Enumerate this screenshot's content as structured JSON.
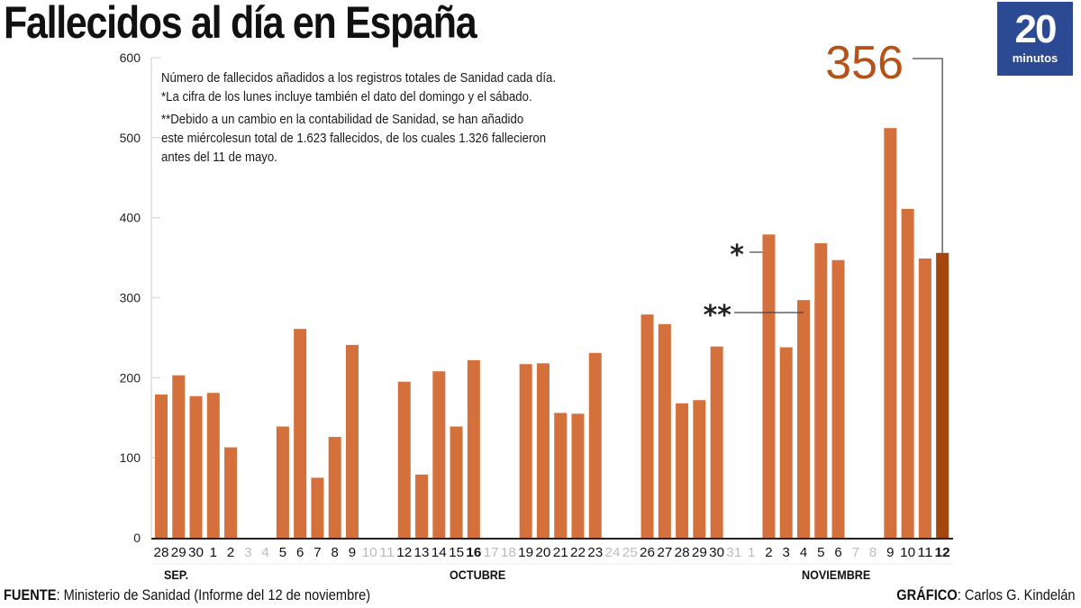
{
  "header": {
    "title": "Fallecidos al día en España",
    "logo_number": "20",
    "logo_text": "minutos"
  },
  "notes": [
    "Número de fallecidos añadidos a los registros totales de Sanidad cada día.",
    "*La cifra de los lunes incluye también el dato del domingo y el sábado.",
    "**Debido a un cambio en la contabilidad de Sanidad, se han añadido",
    "este miércolesun total de 1.623 fallecidos, de los cuales 1.326 fallecieron",
    "antes del 11 de mayo."
  ],
  "footer": {
    "source_label": "FUENTE",
    "source_text": ": Ministerio de Sanidad (Informe del 12 de noviembre)",
    "credit_label": "GRÁFICO",
    "credit_text": ": Carlos G. Kindelán"
  },
  "colors": {
    "bar": "#d4703c",
    "highlight_bar": "#a4470f",
    "highlight_label": "#b5521a",
    "grid": "#dddddd",
    "axis": "#222222",
    "tick_active": "#111111",
    "tick_inactive": "#bbbbbb",
    "logo_bg": "#2b4a93"
  },
  "chart_data": {
    "type": "bar",
    "title": "Fallecidos al día en España",
    "xlabel": "",
    "ylabel": "",
    "ylim": [
      0,
      600
    ],
    "yticks": [
      0,
      100,
      200,
      300,
      400,
      500,
      600
    ],
    "grid": true,
    "categories": [
      "28",
      "29",
      "30",
      "1",
      "2",
      "3",
      "4",
      "5",
      "6",
      "7",
      "8",
      "9",
      "10",
      "11",
      "12",
      "13",
      "14",
      "15",
      "16",
      "17",
      "18",
      "19",
      "20",
      "21",
      "22",
      "23",
      "24",
      "25",
      "26",
      "27",
      "28",
      "29",
      "30",
      "31",
      "1",
      "2",
      "3",
      "4",
      "5",
      "6",
      "7",
      "8",
      "9",
      "10",
      "11",
      "12"
    ],
    "values": [
      179,
      203,
      177,
      181,
      113,
      null,
      null,
      139,
      261,
      75,
      126,
      241,
      null,
      null,
      195,
      79,
      208,
      139,
      222,
      null,
      null,
      217,
      218,
      156,
      155,
      231,
      null,
      null,
      279,
      267,
      168,
      172,
      239,
      null,
      null,
      379,
      238,
      297,
      368,
      347,
      null,
      null,
      512,
      411,
      349,
      356
    ],
    "bold_categories_index": [
      18,
      45
    ],
    "months": [
      {
        "label": "SEP.",
        "start_index": 0
      },
      {
        "label": "OCTUBRE",
        "start_index": 18
      },
      {
        "label": "NOVIEMBRE",
        "start_index": 38
      }
    ],
    "highlight": {
      "index": 45,
      "label": "356"
    },
    "annotations": [
      {
        "text": "*",
        "index": 35
      },
      {
        "text": "**",
        "index": 37
      }
    ]
  }
}
